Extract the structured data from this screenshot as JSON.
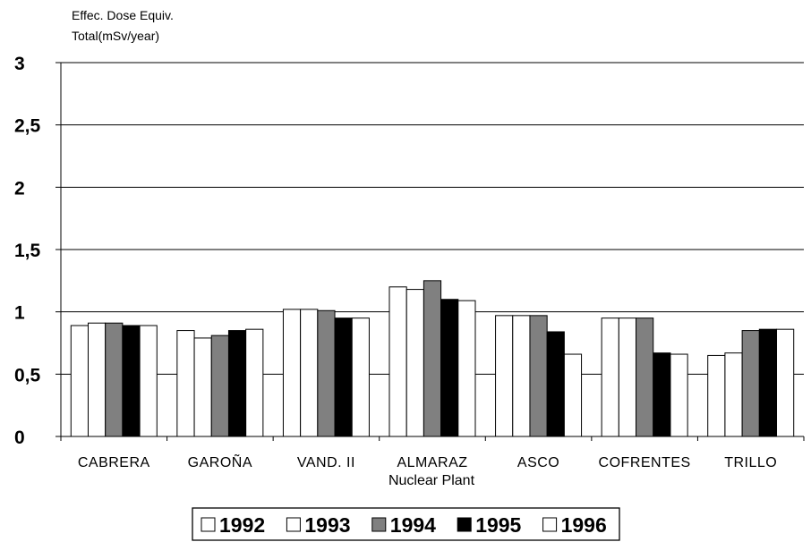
{
  "chart_data": {
    "type": "bar",
    "ylabel_line1": "Effec. Dose Equiv.",
    "ylabel_line2": "Total(mSv/year)",
    "xlabel": "Nuclear Plant",
    "ylim": [
      0,
      3
    ],
    "yticks": [
      "0",
      "0,5",
      "1",
      "1,5",
      "2",
      "2,5",
      "3"
    ],
    "ytick_values": [
      0,
      0.5,
      1,
      1.5,
      2,
      2.5,
      3
    ],
    "grid": true,
    "legend_position": "bottom",
    "categories": [
      "CABRERA",
      "GAROÑA",
      "VAND. II",
      "ALMARAZ",
      "ASCO",
      "COFRENTES",
      "TRILLO"
    ],
    "series": [
      {
        "name": "1992",
        "color": "#ffffff",
        "values": [
          0.89,
          0.85,
          1.02,
          1.2,
          0.97,
          0.95,
          0.65
        ]
      },
      {
        "name": "1993",
        "color": "#ffffff",
        "values": [
          0.91,
          0.79,
          1.02,
          1.18,
          0.97,
          0.95,
          0.67
        ]
      },
      {
        "name": "1994",
        "color": "#808080",
        "values": [
          0.91,
          0.81,
          1.01,
          1.25,
          0.97,
          0.95,
          0.85
        ]
      },
      {
        "name": "1995",
        "color": "#000000",
        "values": [
          0.89,
          0.85,
          0.95,
          1.1,
          0.84,
          0.67,
          0.86
        ]
      },
      {
        "name": "1996",
        "color": "#ffffff",
        "values": [
          0.89,
          0.86,
          0.95,
          1.09,
          0.66,
          0.66,
          0.86
        ]
      }
    ]
  }
}
